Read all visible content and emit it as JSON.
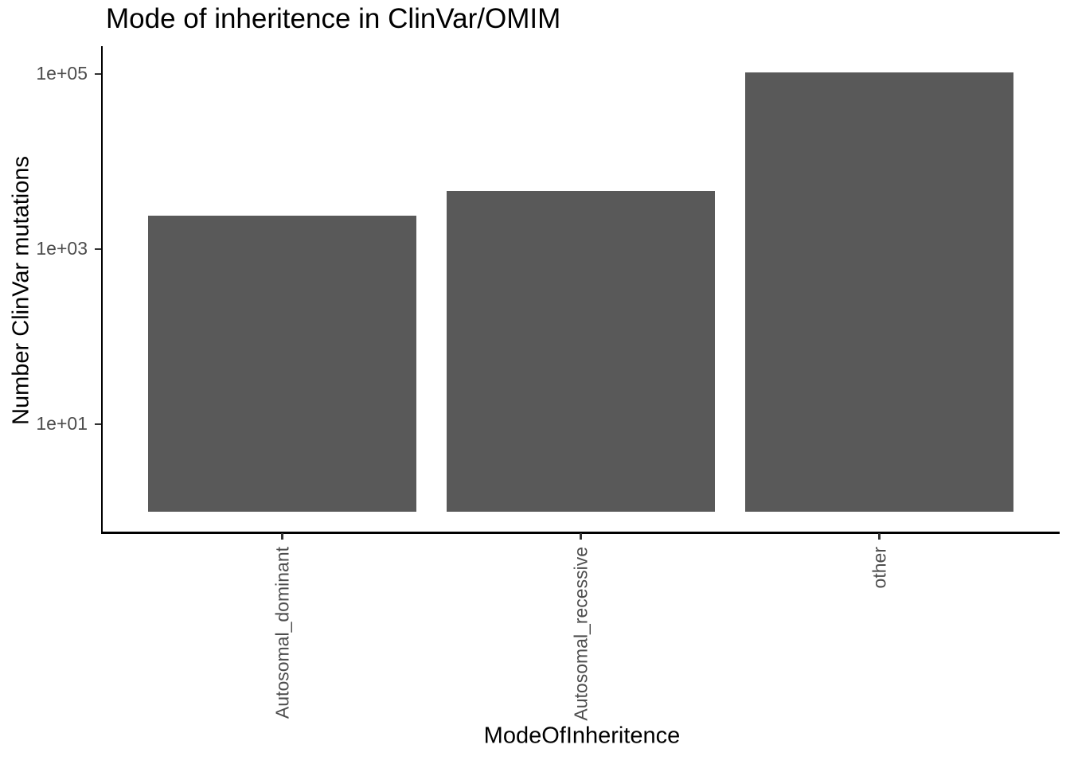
{
  "chart_data": {
    "type": "bar",
    "title": "Mode of inheritence in ClinVar/OMIM",
    "xlabel": "ModeOfInheritence",
    "ylabel": "Number ClinVar mutations",
    "categories": [
      "Autosomal_dominant",
      "Autosomal_recessive",
      "other"
    ],
    "values": [
      2400,
      4600,
      105000
    ],
    "y_scale": "log10",
    "y_ticks": [
      {
        "label": "1e+05",
        "value": 100000
      },
      {
        "label": "1e+03",
        "value": 1000
      },
      {
        "label": "1e+01",
        "value": 10
      }
    ],
    "ylim": [
      0.6,
      200000
    ],
    "bar_base_value": 1,
    "grid": false,
    "legend": false,
    "x_tick_label_rotation_deg": 90,
    "bar_color": "#595959",
    "axis_line_color": "#000000",
    "tick_mark_color": "#333333",
    "axis_text_color": "#4d4d4d",
    "title_color": "#000000",
    "background_color": "#ffffff"
  }
}
